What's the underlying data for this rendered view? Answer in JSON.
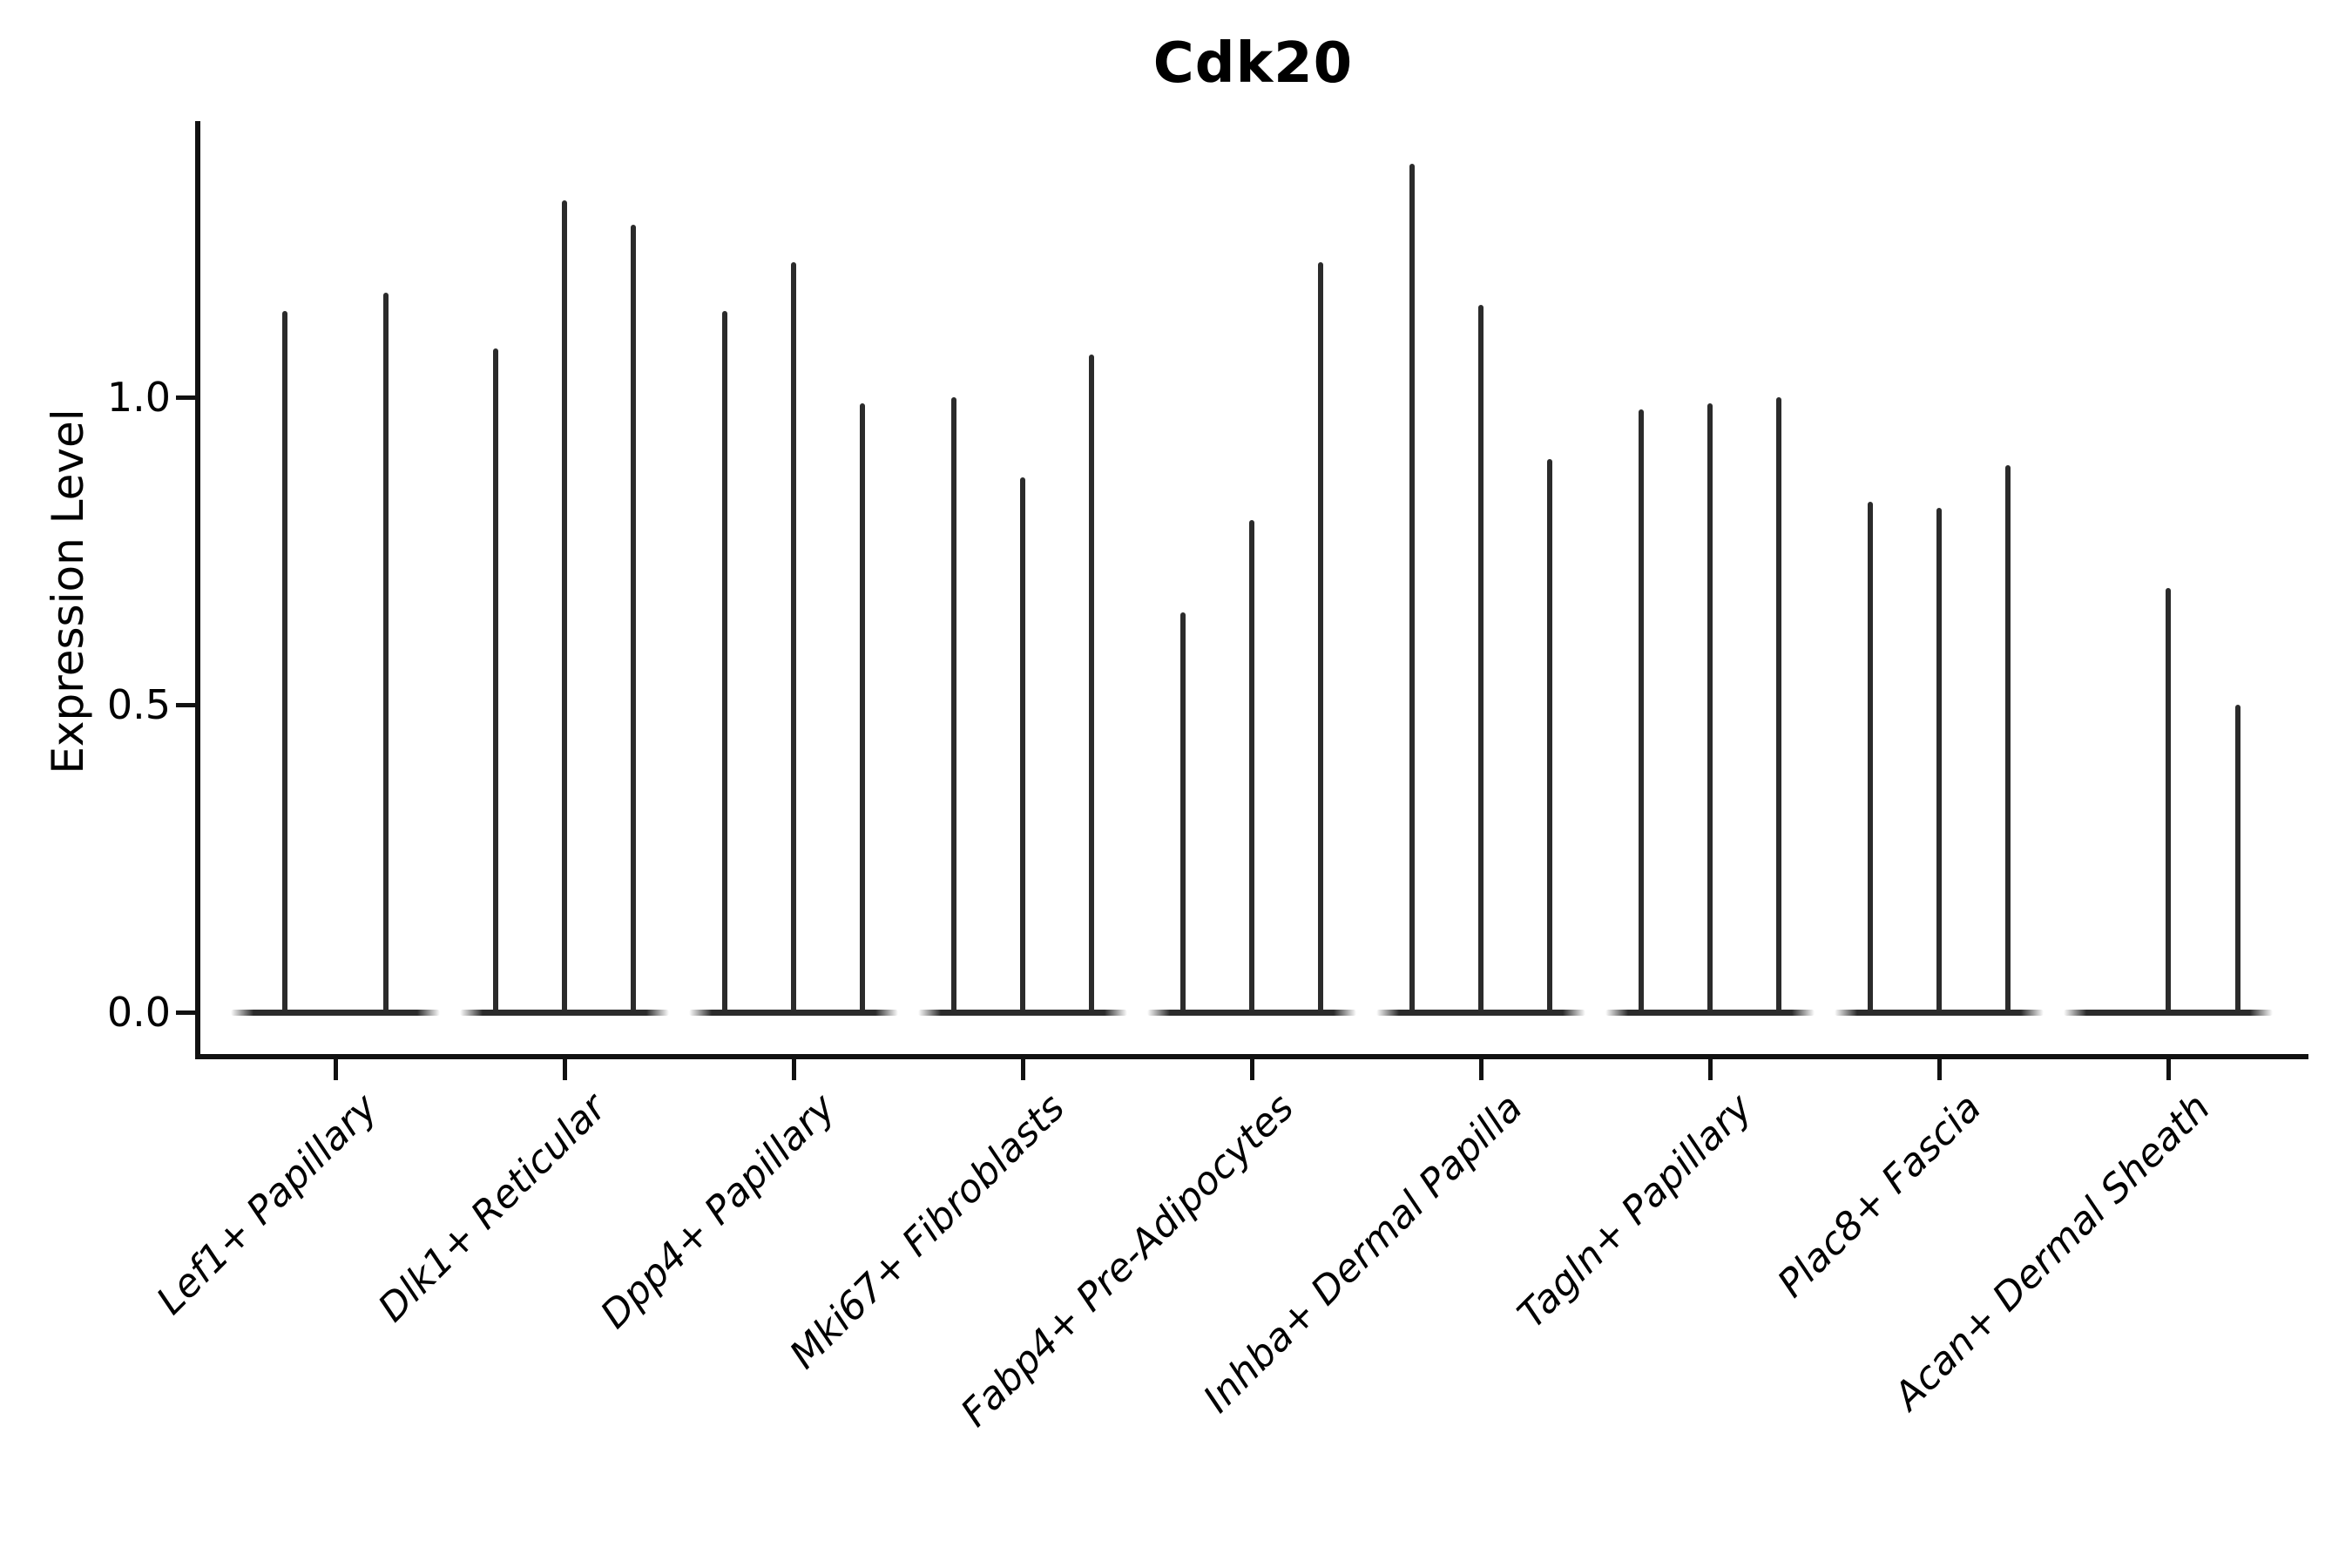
{
  "chart_data": {
    "type": "violin",
    "title": "Cdk20",
    "ylabel": "Expression Level",
    "xlabel": "",
    "ytick_labels": [
      "0.0",
      "0.5",
      "1.0"
    ],
    "ytick_values": [
      0.0,
      0.5,
      1.0
    ],
    "ylim": [
      -0.07,
      1.45
    ],
    "grid": false,
    "legend": null,
    "xtick_label_style": "italic, rotated 45deg, right-anchored",
    "colors": {
      "violin_line": "#2b2b2b",
      "spine": "#111111",
      "text": "#000000",
      "background": "#ffffff"
    },
    "groups": [
      {
        "label": "Lef1+ Papillary",
        "violins": [
          {
            "offset": -58,
            "max": 1.14
          },
          {
            "offset": 58,
            "max": 1.17
          }
        ]
      },
      {
        "label": "Dlk1+ Reticular",
        "violins": [
          {
            "offset": -79,
            "max": 1.08
          },
          {
            "offset": 0,
            "max": 1.32
          },
          {
            "offset": 79,
            "max": 1.28
          }
        ]
      },
      {
        "label": "Dpp4+ Papillary",
        "violins": [
          {
            "offset": -79,
            "max": 1.14
          },
          {
            "offset": 0,
            "max": 1.22
          },
          {
            "offset": 79,
            "max": 0.99
          }
        ]
      },
      {
        "label": "Mki67+ Fibroblasts",
        "violins": [
          {
            "offset": -79,
            "max": 1.0
          },
          {
            "offset": 0,
            "max": 0.87
          },
          {
            "offset": 79,
            "max": 1.07
          }
        ]
      },
      {
        "label": "Fabp4+ Pre-Adipocytes",
        "violins": [
          {
            "offset": -79,
            "max": 0.65
          },
          {
            "offset": 0,
            "max": 0.8
          },
          {
            "offset": 79,
            "max": 1.22
          }
        ]
      },
      {
        "label": "Inhba+ Dermal Papilla",
        "violins": [
          {
            "offset": -79,
            "max": 1.38
          },
          {
            "offset": 0,
            "max": 1.15
          },
          {
            "offset": 79,
            "max": 0.9
          }
        ]
      },
      {
        "label": "Tagln+ Papillary",
        "violins": [
          {
            "offset": -79,
            "max": 0.98
          },
          {
            "offset": 0,
            "max": 0.99
          },
          {
            "offset": 79,
            "max": 1.0
          }
        ]
      },
      {
        "label": "Plac8+ Fascia",
        "violins": [
          {
            "offset": -79,
            "max": 0.83
          },
          {
            "offset": 0,
            "max": 0.82
          },
          {
            "offset": 79,
            "max": 0.89
          }
        ]
      },
      {
        "label": "Acan+ Dermal Sheath",
        "violins": [
          {
            "offset": -80,
            "max": null
          },
          {
            "offset": 0,
            "max": 0.69
          },
          {
            "offset": 80,
            "max": 0.5
          }
        ]
      }
    ]
  }
}
